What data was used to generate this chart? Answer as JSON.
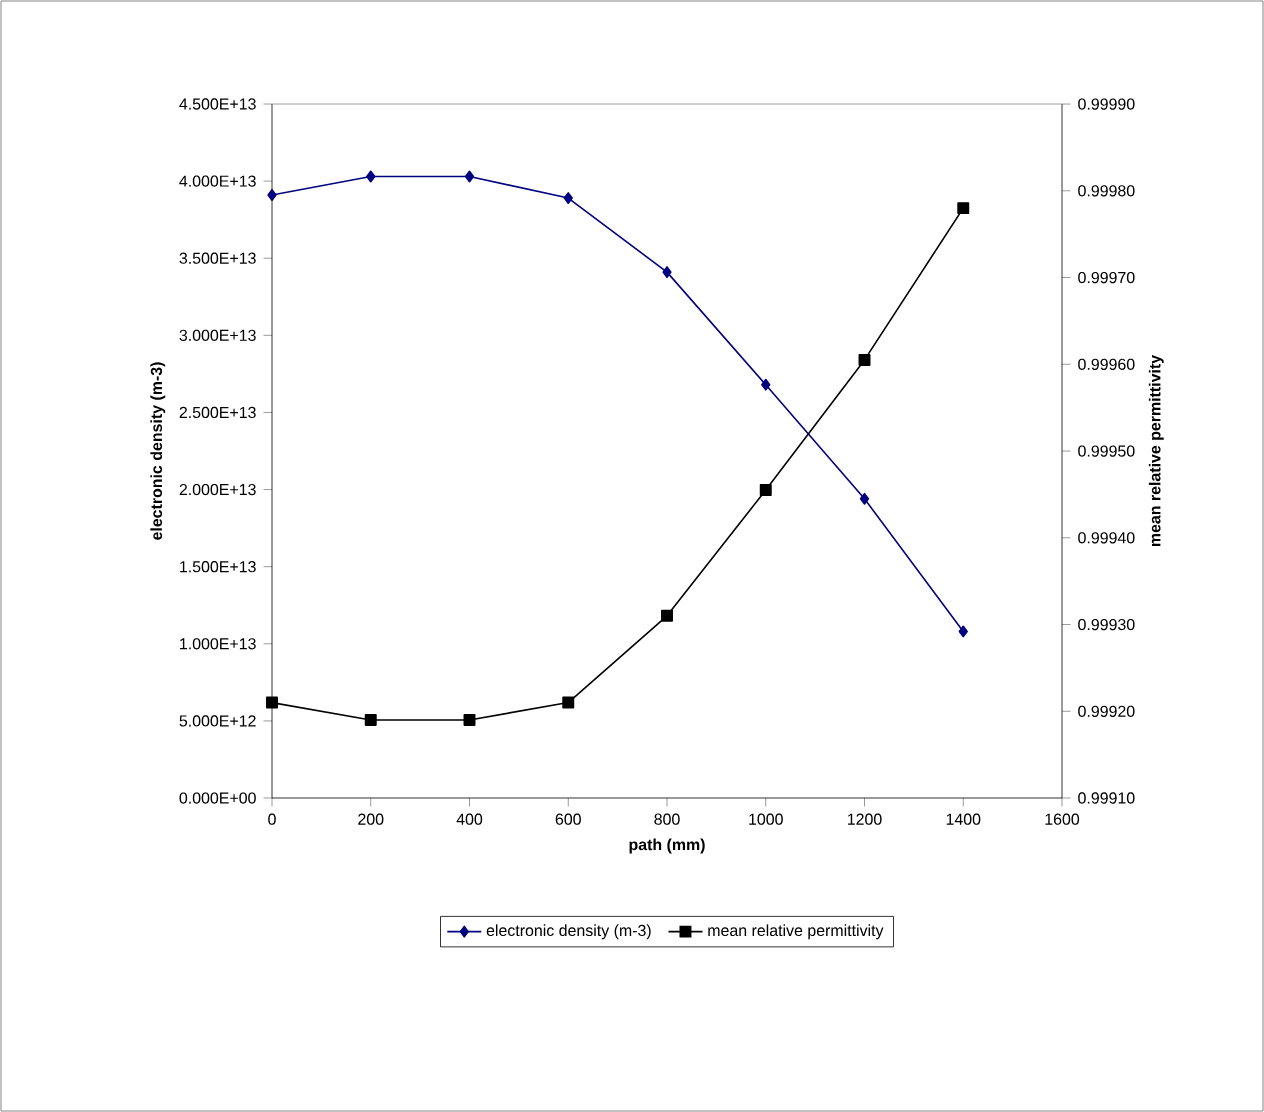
{
  "chart_data": {
    "type": "line",
    "xlabel": "path (mm)",
    "ylabel": "electronic density (m-3)",
    "y2label": "mean relative permittivity",
    "x": [
      0,
      200,
      400,
      600,
      800,
      1000,
      1200,
      1400
    ],
    "xlim": [
      0,
      1600
    ],
    "xticks": [
      0,
      200,
      400,
      600,
      800,
      1000,
      1200,
      1400,
      1600
    ],
    "ylim": [
      0,
      45000000000000.0
    ],
    "yticks": [
      {
        "value": 0,
        "label": "0.000E+00"
      },
      {
        "value": 5000000000000.0,
        "label": "5.000E+12"
      },
      {
        "value": 10000000000000.0,
        "label": "1.000E+13"
      },
      {
        "value": 15000000000000.0,
        "label": "1.500E+13"
      },
      {
        "value": 20000000000000.0,
        "label": "2.000E+13"
      },
      {
        "value": 25000000000000.0,
        "label": "2.500E+13"
      },
      {
        "value": 30000000000000.0,
        "label": "3.000E+13"
      },
      {
        "value": 35000000000000.0,
        "label": "3.500E+13"
      },
      {
        "value": 40000000000000.0,
        "label": "4.000E+13"
      },
      {
        "value": 45000000000000.0,
        "label": "4.500E+13"
      }
    ],
    "y2lim": [
      0.9991,
      0.9999
    ],
    "y2ticks": [
      {
        "value": 0.9991,
        "label": "0.99910"
      },
      {
        "value": 0.9992,
        "label": "0.99920"
      },
      {
        "value": 0.9993,
        "label": "0.99930"
      },
      {
        "value": 0.9994,
        "label": "0.99940"
      },
      {
        "value": 0.9995,
        "label": "0.99950"
      },
      {
        "value": 0.9996,
        "label": "0.99960"
      },
      {
        "value": 0.9997,
        "label": "0.99970"
      },
      {
        "value": 0.9998,
        "label": "0.99980"
      },
      {
        "value": 0.9999,
        "label": "0.99990"
      }
    ],
    "series": [
      {
        "name": "electronic density (m-3)",
        "color": "#000080",
        "marker": "diamond",
        "values": [
          39100000000000.0,
          40300000000000.0,
          40300000000000.0,
          38900000000000.0,
          34100000000000.0,
          26800000000000.0,
          19400000000000.0,
          10800000000000.0
        ]
      },
      {
        "name": "mean relative permittivity",
        "color": "#000000",
        "marker": "square",
        "axis": "y2",
        "values": [
          0.99921,
          0.99919,
          0.99919,
          0.99921,
          0.99931,
          0.999455,
          0.999605,
          0.99978
        ]
      }
    ],
    "legend": "bottom",
    "grid": false
  }
}
